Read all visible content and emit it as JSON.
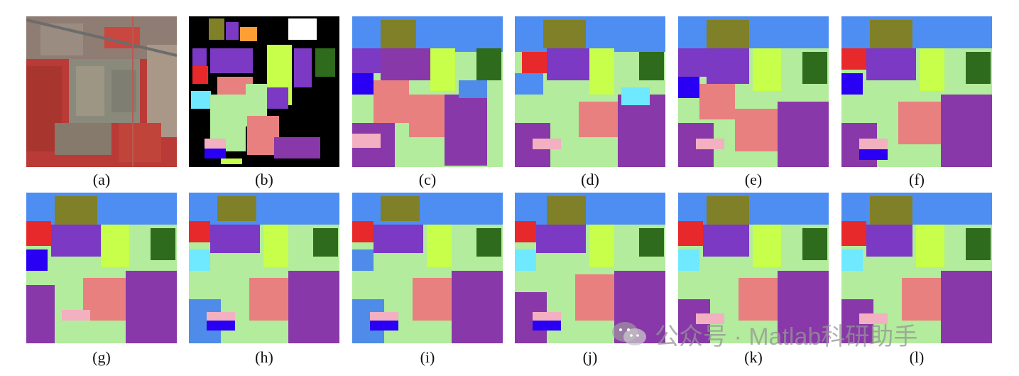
{
  "figure": {
    "captions": [
      "(a)",
      "(b)",
      "(c)",
      "(d)",
      "(e)",
      "(f)",
      "(g)",
      "(h)",
      "(i)",
      "(j)",
      "(k)",
      "(l)"
    ]
  },
  "watermark": {
    "text": "公众号 · Matlab科研助手",
    "icon": "wechat-icon"
  },
  "colors": {
    "background": "#ffffff",
    "class_colors": [
      "#f2b0c0",
      "#7b39c4",
      "#e88080",
      "#b2ec9c",
      "#c7ff4a",
      "#2f6b1c",
      "#808028",
      "#2a00f5",
      "#4e8ef2",
      "#6fe9ff",
      "#e8292c",
      "#ff9e35",
      "#ffff2a",
      "#c6a2ff",
      "#8838a8",
      "#4f8be8"
    ]
  }
}
